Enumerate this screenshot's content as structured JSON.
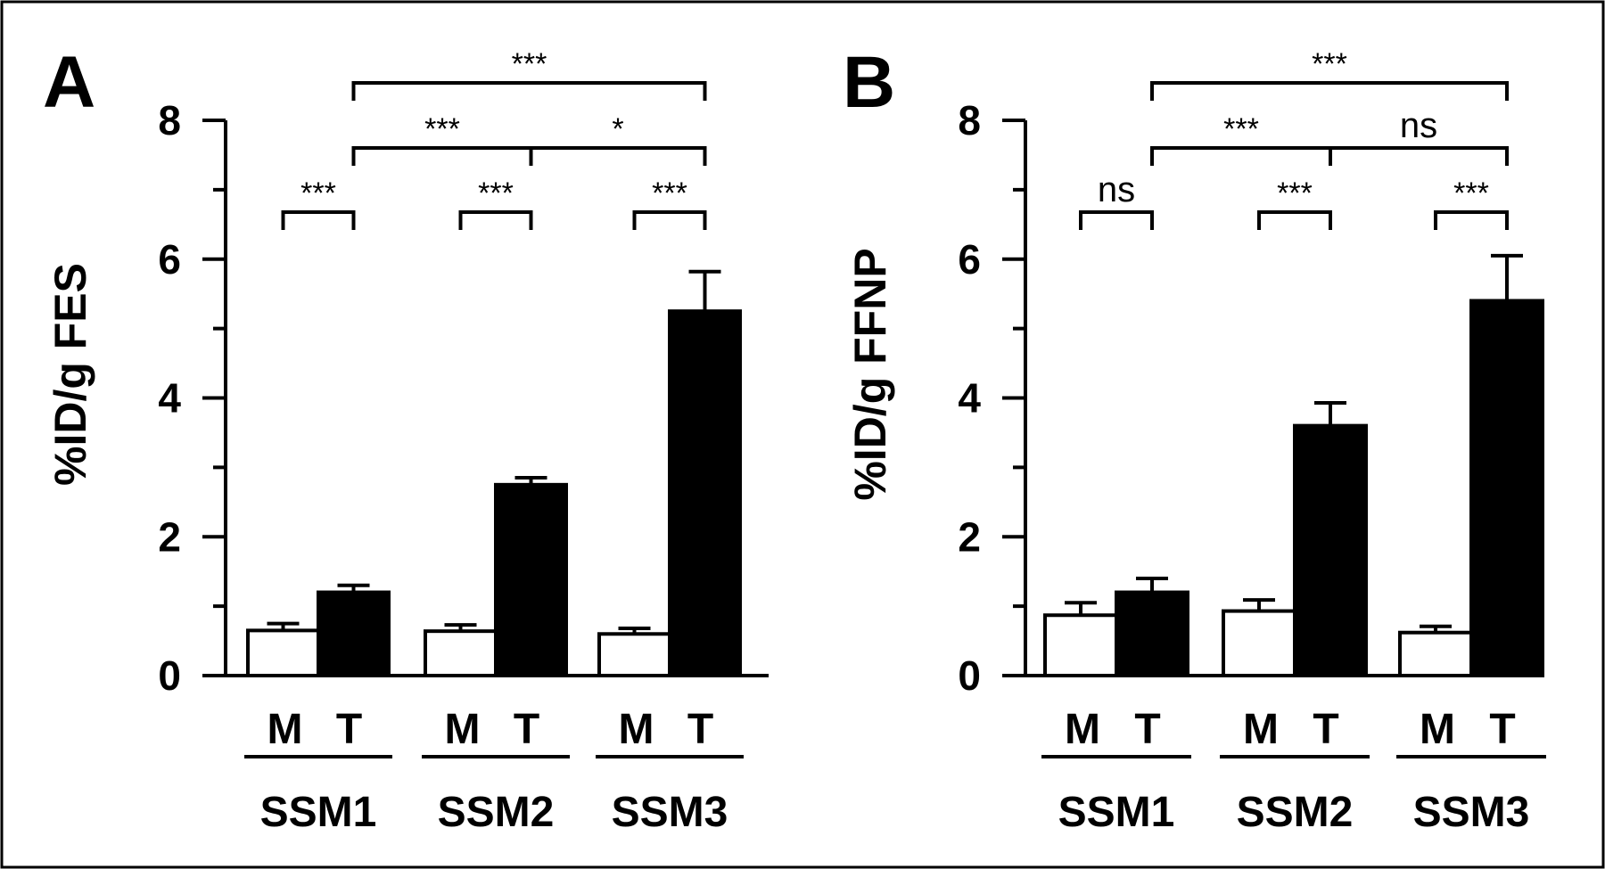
{
  "figure": {
    "colors": {
      "border": "#000000",
      "muscle_fill": "#ffffff",
      "tumor_fill": "#000000",
      "ink": "#000000"
    }
  },
  "chart_data": [
    {
      "type": "bar",
      "panel": "A",
      "ylabel": "%ID/g FES",
      "ylim": [
        0,
        8
      ],
      "yticks": [
        "0",
        "2",
        "4",
        "6",
        "8"
      ],
      "groups": [
        "SSM1",
        "SSM2",
        "SSM3"
      ],
      "bar_labels": [
        "M",
        "T"
      ],
      "series": [
        {
          "name": "M",
          "values": [
            0.65,
            0.64,
            0.6
          ],
          "errors": [
            0.1,
            0.09,
            0.08
          ],
          "fill": "#ffffff"
        },
        {
          "name": "T",
          "values": [
            1.2,
            2.75,
            5.25
          ],
          "errors": [
            0.1,
            0.1,
            0.57
          ],
          "fill": "#000000"
        }
      ],
      "comparisons": [
        {
          "from": "SSM1-M",
          "to": "SSM1-T",
          "label": "***"
        },
        {
          "from": "SSM2-M",
          "to": "SSM2-T",
          "label": "***"
        },
        {
          "from": "SSM3-M",
          "to": "SSM3-T",
          "label": "***"
        },
        {
          "from": "SSM1-T",
          "to": "SSM2-T",
          "label": "***"
        },
        {
          "from": "SSM2-T",
          "to": "SSM3-T",
          "label": "*"
        },
        {
          "from": "SSM1-T",
          "to": "SSM3-T",
          "label": "***"
        }
      ]
    },
    {
      "type": "bar",
      "panel": "B",
      "ylabel": "%ID/g FFNP",
      "ylim": [
        0,
        8
      ],
      "yticks": [
        "0",
        "2",
        "4",
        "6",
        "8"
      ],
      "groups": [
        "SSM1",
        "SSM2",
        "SSM3"
      ],
      "bar_labels": [
        "M",
        "T"
      ],
      "series": [
        {
          "name": "M",
          "values": [
            0.87,
            0.93,
            0.62
          ],
          "errors": [
            0.18,
            0.16,
            0.09
          ],
          "fill": "#ffffff"
        },
        {
          "name": "T",
          "values": [
            1.2,
            3.6,
            5.4
          ],
          "errors": [
            0.2,
            0.33,
            0.65
          ],
          "fill": "#000000"
        }
      ],
      "comparisons": [
        {
          "from": "SSM1-M",
          "to": "SSM1-T",
          "label": "ns"
        },
        {
          "from": "SSM2-M",
          "to": "SSM2-T",
          "label": "***"
        },
        {
          "from": "SSM3-M",
          "to": "SSM3-T",
          "label": "***"
        },
        {
          "from": "SSM1-T",
          "to": "SSM2-T",
          "label": "***"
        },
        {
          "from": "SSM2-T",
          "to": "SSM3-T",
          "label": "ns"
        },
        {
          "from": "SSM1-T",
          "to": "SSM3-T",
          "label": "***"
        }
      ]
    }
  ]
}
